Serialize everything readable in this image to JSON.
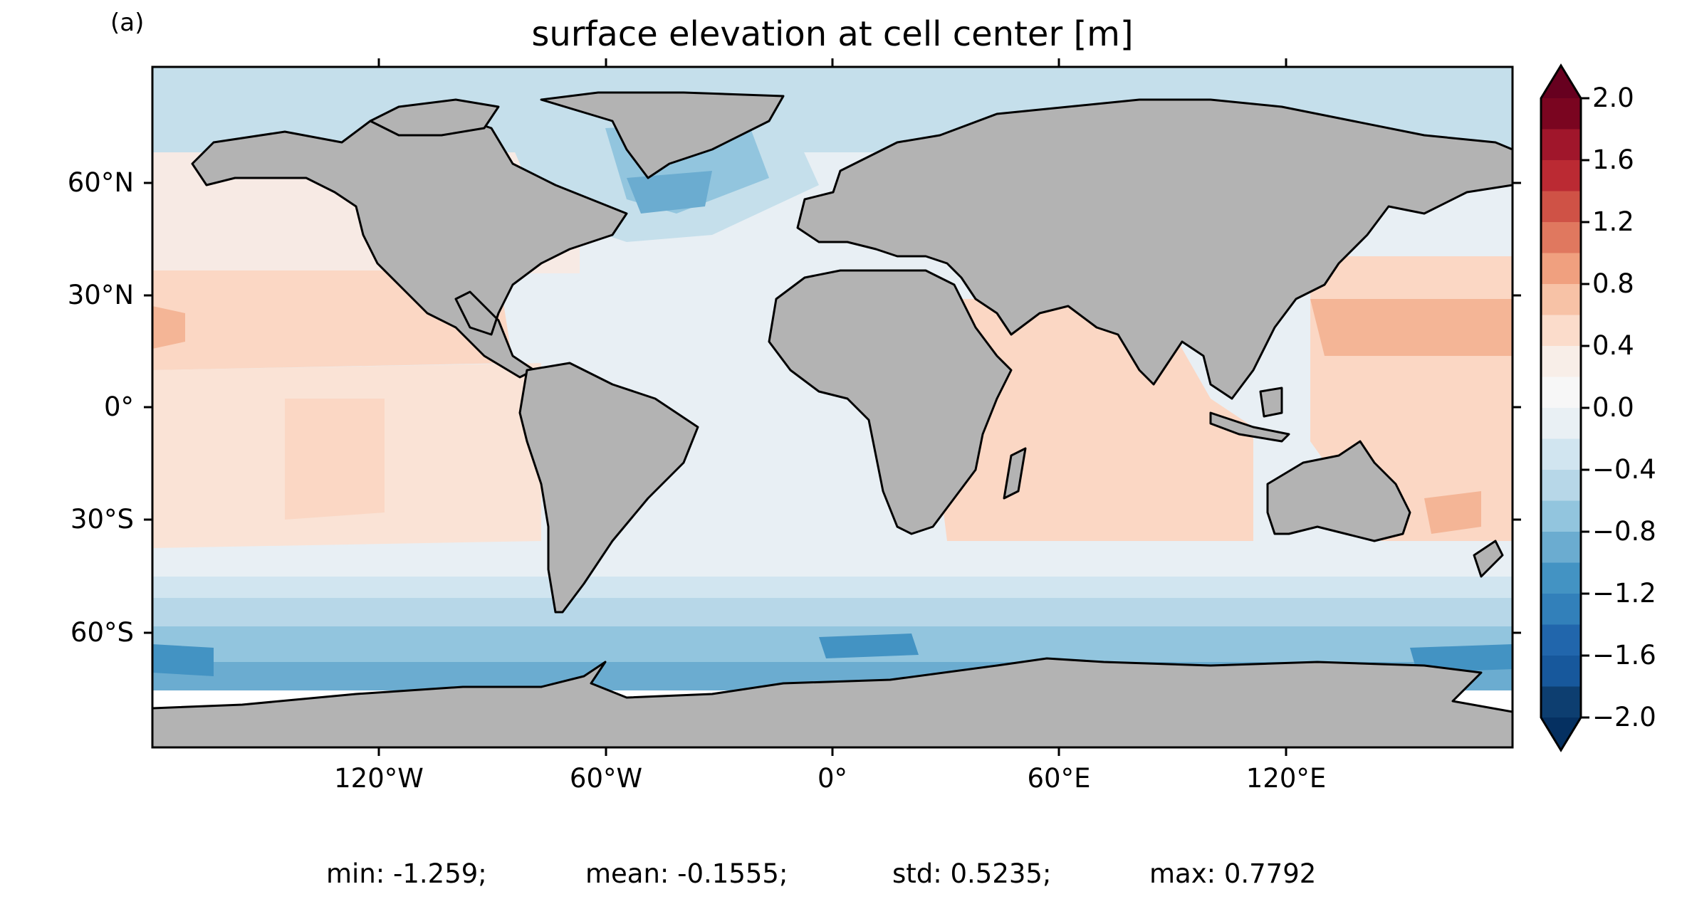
{
  "panel_label": "(a)",
  "title": "surface elevation at cell center [m]",
  "lat_ticks": [
    "60°N",
    "30°N",
    "0°",
    "30°S",
    "60°S"
  ],
  "lon_ticks": [
    "120°W",
    "60°W",
    "0°",
    "60°E",
    "120°E"
  ],
  "colorbar": {
    "ticks": [
      "2.0",
      "1.6",
      "1.2",
      "0.8",
      "0.4",
      "0.0",
      "−0.4",
      "−0.8",
      "−1.2",
      "−1.6",
      "−2.0"
    ],
    "range": [
      -2.0,
      2.0
    ],
    "step": 0.2,
    "extend": "both",
    "colormap": "RdBu_r"
  },
  "stats": {
    "min": "min: -1.259;",
    "mean": "mean: -0.1555;",
    "std": "std: 0.5235;",
    "max": "max: 0.7792"
  },
  "colors": {
    "land": "#b3b3b3",
    "ice": "#ffffff",
    "coastline": "#000000"
  }
}
